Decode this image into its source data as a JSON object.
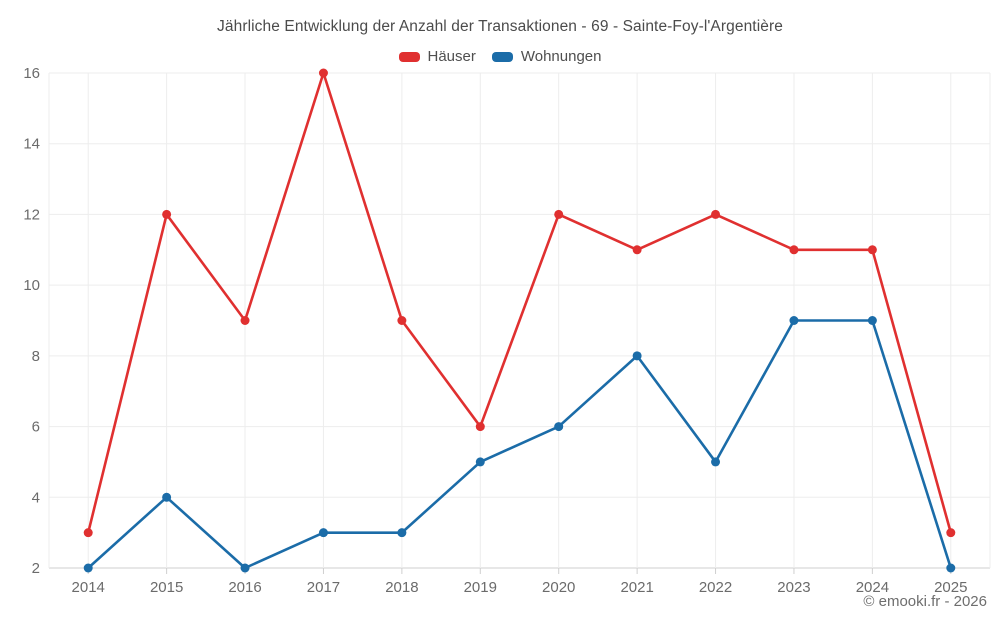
{
  "chart_data": {
    "type": "line",
    "title": "Jährliche Entwicklung der Anzahl der Transaktionen - 69 - Sainte-Foy-l'Argentière",
    "categories": [
      "2014",
      "2015",
      "2016",
      "2017",
      "2018",
      "2019",
      "2020",
      "2021",
      "2022",
      "2023",
      "2024",
      "2025"
    ],
    "series": [
      {
        "name": "Häuser",
        "color": "#e03030",
        "values": [
          3,
          12,
          9,
          16,
          9,
          6,
          12,
          11,
          12,
          11,
          11,
          3
        ]
      },
      {
        "name": "Wohnungen",
        "color": "#1b6ca8",
        "values": [
          2,
          4,
          2,
          3,
          3,
          5,
          6,
          8,
          5,
          9,
          9,
          2
        ]
      }
    ],
    "xlabel": "",
    "ylabel": "",
    "ylim": [
      2,
      16
    ],
    "yticks": [
      2,
      4,
      6,
      8,
      10,
      12,
      14,
      16
    ],
    "grid": true,
    "legend_position": "top"
  },
  "colors": {
    "grid": "#ededed",
    "axis": "#cfcfcf",
    "axis_text": "#6b6b6b"
  },
  "footer": {
    "copyright": "© emooki.fr - 2026"
  }
}
